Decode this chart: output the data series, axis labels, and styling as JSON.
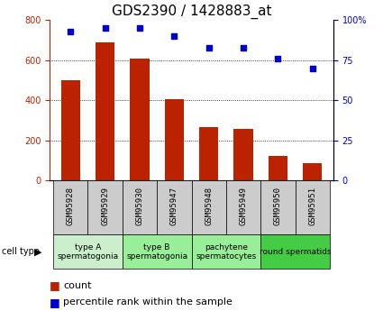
{
  "title": "GDS2390 / 1428883_at",
  "samples": [
    "GSM95928",
    "GSM95929",
    "GSM95930",
    "GSM95947",
    "GSM95948",
    "GSM95949",
    "GSM95950",
    "GSM95951"
  ],
  "counts": [
    500,
    690,
    610,
    405,
    265,
    255,
    120,
    88
  ],
  "percentile_ranks": [
    93,
    95,
    95,
    90,
    83,
    83,
    76,
    70
  ],
  "ylim_left": [
    0,
    800
  ],
  "ylim_right": [
    0,
    100
  ],
  "yticks_left": [
    0,
    200,
    400,
    600,
    800
  ],
  "yticks_right": [
    0,
    25,
    50,
    75,
    100
  ],
  "bar_color": "#bb2200",
  "dot_color": "#0000cc",
  "cell_type_spans": [
    {
      "start": 0,
      "end": 1,
      "label": "type A\nspermatogonia",
      "color": "#cceecc"
    },
    {
      "start": 2,
      "end": 3,
      "label": "type B\nspermatogonia",
      "color": "#99ee99"
    },
    {
      "start": 4,
      "end": 5,
      "label": "pachytene\nspermatocytes",
      "color": "#99ee99"
    },
    {
      "start": 6,
      "end": 7,
      "label": "round spermatids",
      "color": "#44cc44"
    }
  ],
  "cell_type_label": "cell type",
  "legend_count_label": "count",
  "legend_percentile_label": "percentile rank within the sample",
  "sample_box_color": "#cccccc",
  "title_fontsize": 11,
  "tick_fontsize": 7,
  "sample_fontsize": 6.5,
  "celltype_fontsize": 6.5,
  "legend_fontsize": 8
}
